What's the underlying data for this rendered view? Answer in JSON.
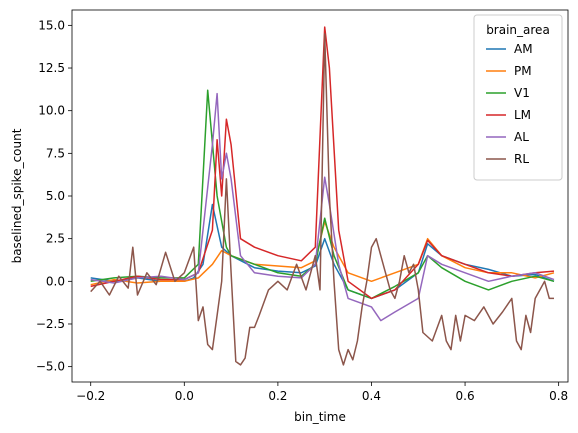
{
  "chart_data": {
    "type": "line",
    "xlabel": "bin_time",
    "ylabel": "baselined_spike_count",
    "xlim": [
      -0.24,
      0.82
    ],
    "ylim": [
      -5.9,
      15.9
    ],
    "xticks": [
      -0.2,
      0.0,
      0.2,
      0.4,
      0.6,
      0.8
    ],
    "xtick_labels": [
      "−0.2",
      "0.0",
      "0.2",
      "0.4",
      "0.6",
      "0.8"
    ],
    "yticks": [
      -5.0,
      -2.5,
      0.0,
      2.5,
      5.0,
      7.5,
      10.0,
      12.5,
      15.0
    ],
    "ytick_labels": [
      "−5.0",
      "−2.5",
      "0.0",
      "2.5",
      "5.0",
      "7.5",
      "10.0",
      "12.5",
      "15.0"
    ],
    "legend": {
      "title": "brain_area",
      "placement": "top-right"
    },
    "grid": false,
    "series": [
      {
        "name": "AM",
        "color": "#1f77b4",
        "points": [
          [
            -0.2,
            0.2
          ],
          [
            -0.15,
            0.0
          ],
          [
            -0.1,
            0.2
          ],
          [
            -0.05,
            0.0
          ],
          [
            0.0,
            0.0
          ],
          [
            0.02,
            0.2
          ],
          [
            0.04,
            1.0
          ],
          [
            0.06,
            4.5
          ],
          [
            0.08,
            2.0
          ],
          [
            0.1,
            1.5
          ],
          [
            0.15,
            0.8
          ],
          [
            0.2,
            0.6
          ],
          [
            0.25,
            0.5
          ],
          [
            0.28,
            0.9
          ],
          [
            0.3,
            2.5
          ],
          [
            0.32,
            1.0
          ],
          [
            0.35,
            -0.5
          ],
          [
            0.4,
            -1.0
          ],
          [
            0.45,
            -0.5
          ],
          [
            0.5,
            0.5
          ],
          [
            0.52,
            2.2
          ],
          [
            0.55,
            1.5
          ],
          [
            0.6,
            1.0
          ],
          [
            0.65,
            0.7
          ],
          [
            0.7,
            0.3
          ],
          [
            0.75,
            0.4
          ],
          [
            0.79,
            0.0
          ]
        ]
      },
      {
        "name": "PM",
        "color": "#ff7f0e",
        "points": [
          [
            -0.2,
            -0.2
          ],
          [
            -0.15,
            0.1
          ],
          [
            -0.1,
            -0.1
          ],
          [
            -0.05,
            0.0
          ],
          [
            0.0,
            0.0
          ],
          [
            0.03,
            0.2
          ],
          [
            0.06,
            1.0
          ],
          [
            0.08,
            1.8
          ],
          [
            0.1,
            1.5
          ],
          [
            0.15,
            1.0
          ],
          [
            0.2,
            0.9
          ],
          [
            0.25,
            0.8
          ],
          [
            0.28,
            1.2
          ],
          [
            0.3,
            3.5
          ],
          [
            0.32,
            2.0
          ],
          [
            0.35,
            0.5
          ],
          [
            0.4,
            0.0
          ],
          [
            0.45,
            0.5
          ],
          [
            0.5,
            1.0
          ],
          [
            0.52,
            2.5
          ],
          [
            0.55,
            1.5
          ],
          [
            0.6,
            0.8
          ],
          [
            0.65,
            0.5
          ],
          [
            0.7,
            0.5
          ],
          [
            0.75,
            0.2
          ],
          [
            0.79,
            0.5
          ]
        ]
      },
      {
        "name": "V1",
        "color": "#2ca02c",
        "points": [
          [
            -0.2,
            0.0
          ],
          [
            -0.15,
            0.2
          ],
          [
            -0.1,
            0.3
          ],
          [
            -0.05,
            0.2
          ],
          [
            0.0,
            0.2
          ],
          [
            0.03,
            1.0
          ],
          [
            0.05,
            11.2
          ],
          [
            0.07,
            5.0
          ],
          [
            0.09,
            2.0
          ],
          [
            0.1,
            1.5
          ],
          [
            0.15,
            1.0
          ],
          [
            0.2,
            0.5
          ],
          [
            0.25,
            0.3
          ],
          [
            0.28,
            1.0
          ],
          [
            0.3,
            3.7
          ],
          [
            0.32,
            1.5
          ],
          [
            0.35,
            -0.5
          ],
          [
            0.4,
            -1.0
          ],
          [
            0.45,
            -0.3
          ],
          [
            0.5,
            0.5
          ],
          [
            0.52,
            1.5
          ],
          [
            0.55,
            0.8
          ],
          [
            0.6,
            0.0
          ],
          [
            0.65,
            -0.5
          ],
          [
            0.7,
            0.0
          ],
          [
            0.75,
            0.3
          ],
          [
            0.79,
            0.0
          ]
        ]
      },
      {
        "name": "LM",
        "color": "#d62728",
        "points": [
          [
            -0.2,
            -0.3
          ],
          [
            -0.15,
            0.0
          ],
          [
            -0.1,
            0.3
          ],
          [
            -0.05,
            0.1
          ],
          [
            0.0,
            0.1
          ],
          [
            0.03,
            0.5
          ],
          [
            0.06,
            3.0
          ],
          [
            0.07,
            8.3
          ],
          [
            0.08,
            5.0
          ],
          [
            0.09,
            9.5
          ],
          [
            0.1,
            8.0
          ],
          [
            0.12,
            2.5
          ],
          [
            0.15,
            2.0
          ],
          [
            0.2,
            1.5
          ],
          [
            0.25,
            1.2
          ],
          [
            0.28,
            2.0
          ],
          [
            0.3,
            14.9
          ],
          [
            0.31,
            12.5
          ],
          [
            0.33,
            3.0
          ],
          [
            0.35,
            0.0
          ],
          [
            0.4,
            -1.0
          ],
          [
            0.45,
            -0.5
          ],
          [
            0.5,
            1.0
          ],
          [
            0.52,
            2.4
          ],
          [
            0.55,
            1.5
          ],
          [
            0.6,
            1.0
          ],
          [
            0.65,
            0.5
          ],
          [
            0.7,
            0.3
          ],
          [
            0.75,
            0.5
          ],
          [
            0.79,
            0.6
          ]
        ]
      },
      {
        "name": "AL",
        "color": "#9467bd",
        "points": [
          [
            -0.2,
            0.1
          ],
          [
            -0.15,
            -0.1
          ],
          [
            -0.1,
            0.2
          ],
          [
            -0.05,
            0.3
          ],
          [
            0.0,
            0.1
          ],
          [
            0.03,
            0.5
          ],
          [
            0.06,
            8.0
          ],
          [
            0.07,
            11.0
          ],
          [
            0.08,
            6.0
          ],
          [
            0.09,
            7.5
          ],
          [
            0.1,
            6.0
          ],
          [
            0.12,
            1.5
          ],
          [
            0.15,
            0.5
          ],
          [
            0.2,
            0.3
          ],
          [
            0.25,
            0.2
          ],
          [
            0.28,
            1.0
          ],
          [
            0.3,
            6.1
          ],
          [
            0.31,
            4.5
          ],
          [
            0.33,
            1.0
          ],
          [
            0.35,
            -1.0
          ],
          [
            0.4,
            -1.5
          ],
          [
            0.42,
            -2.3
          ],
          [
            0.45,
            -1.8
          ],
          [
            0.5,
            -1.0
          ],
          [
            0.52,
            1.5
          ],
          [
            0.55,
            1.0
          ],
          [
            0.6,
            0.5
          ],
          [
            0.65,
            0.0
          ],
          [
            0.7,
            0.3
          ],
          [
            0.75,
            0.5
          ],
          [
            0.79,
            0.1
          ]
        ]
      },
      {
        "name": "RL",
        "color": "#8c564b",
        "points": [
          [
            -0.2,
            -0.6
          ],
          [
            -0.18,
            0.0
          ],
          [
            -0.16,
            -0.8
          ],
          [
            -0.14,
            0.3
          ],
          [
            -0.12,
            -0.4
          ],
          [
            -0.11,
            2.0
          ],
          [
            -0.1,
            -0.8
          ],
          [
            -0.08,
            0.5
          ],
          [
            -0.06,
            -0.2
          ],
          [
            -0.04,
            1.7
          ],
          [
            -0.02,
            0.0
          ],
          [
            0.0,
            0.5
          ],
          [
            0.02,
            2.0
          ],
          [
            0.03,
            -2.3
          ],
          [
            0.04,
            -1.5
          ],
          [
            0.05,
            -3.7
          ],
          [
            0.06,
            -4.0
          ],
          [
            0.07,
            -2.0
          ],
          [
            0.08,
            0.0
          ],
          [
            0.09,
            6.0
          ],
          [
            0.1,
            0.5
          ],
          [
            0.11,
            -4.7
          ],
          [
            0.12,
            -4.9
          ],
          [
            0.13,
            -4.5
          ],
          [
            0.14,
            -2.7
          ],
          [
            0.15,
            -2.7
          ],
          [
            0.16,
            -2.0
          ],
          [
            0.18,
            -0.5
          ],
          [
            0.2,
            0.0
          ],
          [
            0.22,
            -0.5
          ],
          [
            0.24,
            1.0
          ],
          [
            0.26,
            -0.5
          ],
          [
            0.28,
            1.5
          ],
          [
            0.29,
            -0.5
          ],
          [
            0.3,
            14.5
          ],
          [
            0.31,
            5.0
          ],
          [
            0.32,
            0.0
          ],
          [
            0.33,
            -4.0
          ],
          [
            0.34,
            -4.9
          ],
          [
            0.35,
            -4.0
          ],
          [
            0.36,
            -4.6
          ],
          [
            0.37,
            -3.5
          ],
          [
            0.38,
            -1.5
          ],
          [
            0.39,
            0.0
          ],
          [
            0.4,
            2.0
          ],
          [
            0.41,
            2.5
          ],
          [
            0.42,
            1.5
          ],
          [
            0.43,
            0.5
          ],
          [
            0.44,
            -0.5
          ],
          [
            0.45,
            -1.0
          ],
          [
            0.46,
            0.0
          ],
          [
            0.47,
            1.5
          ],
          [
            0.48,
            0.5
          ],
          [
            0.49,
            1.0
          ],
          [
            0.5,
            -0.5
          ],
          [
            0.51,
            -3.0
          ],
          [
            0.53,
            -3.5
          ],
          [
            0.55,
            -2.0
          ],
          [
            0.56,
            -3.5
          ],
          [
            0.57,
            -4.0
          ],
          [
            0.58,
            -2.0
          ],
          [
            0.59,
            -3.5
          ],
          [
            0.6,
            -2.0
          ],
          [
            0.62,
            -2.3
          ],
          [
            0.64,
            -1.5
          ],
          [
            0.66,
            -2.5
          ],
          [
            0.68,
            -1.8
          ],
          [
            0.7,
            -1.0
          ],
          [
            0.71,
            -3.5
          ],
          [
            0.72,
            -4.0
          ],
          [
            0.73,
            -2.0
          ],
          [
            0.74,
            -3.0
          ],
          [
            0.75,
            -1.0
          ],
          [
            0.76,
            -0.5
          ],
          [
            0.77,
            0.0
          ],
          [
            0.78,
            -1.0
          ],
          [
            0.79,
            -1.0
          ]
        ]
      }
    ]
  }
}
